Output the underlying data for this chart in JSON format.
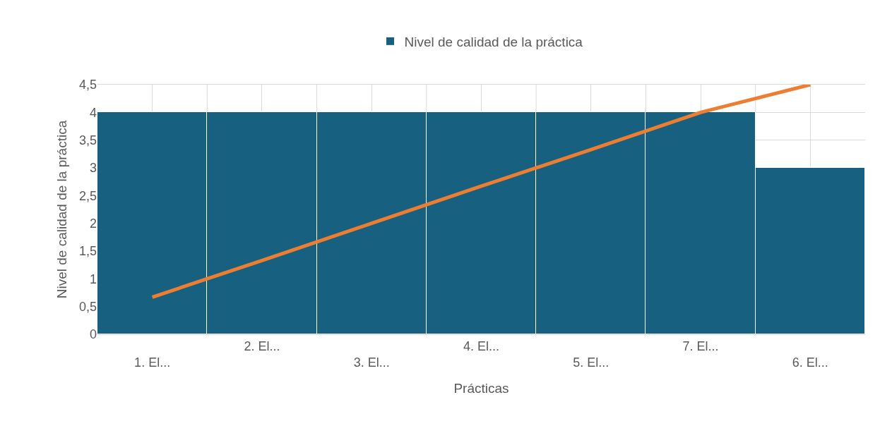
{
  "chart_data": {
    "type": "bar",
    "xlabel": "Prácticas",
    "ylabel": "Nivel de calidad de la práctica",
    "categories": [
      "1. El...",
      "2. El...",
      "3. El...",
      "4. El...",
      "5. El...",
      "7. El...",
      "6. El..."
    ],
    "series": [
      {
        "name": "Nivel de calidad de la práctica",
        "color": "#17607f",
        "values": [
          4,
          4,
          4,
          4,
          4,
          4,
          3
        ]
      },
      {
        "type": "line",
        "color": "#ed7d31",
        "values": [
          0.67,
          1.33,
          2,
          2.67,
          3.33,
          4,
          4.5
        ]
      }
    ],
    "ylim": [
      0,
      4.5
    ],
    "yticks": [
      0,
      {
        "value": 0.5,
        "label": "0,5"
      },
      1,
      {
        "value": 1.5,
        "label": "1,5"
      },
      2,
      {
        "value": 2.5,
        "label": "2,5"
      },
      3,
      {
        "value": 3.5,
        "label": "3,5"
      },
      4,
      {
        "value": 4.5,
        "label": "4,5"
      }
    ],
    "grid": true,
    "legend": "top"
  }
}
